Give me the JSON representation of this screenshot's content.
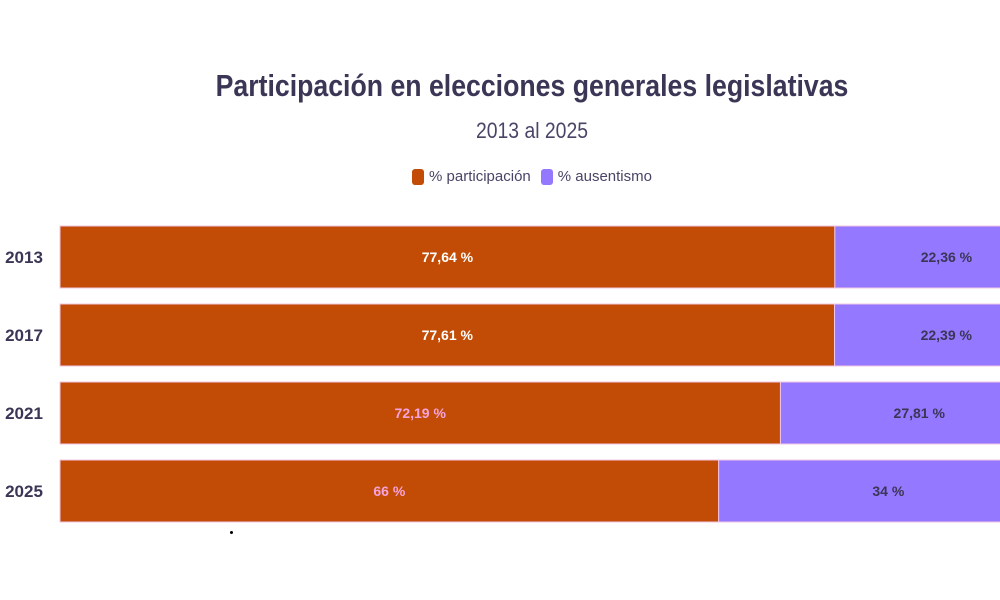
{
  "chart_data": {
    "type": "bar",
    "orientation": "horizontal",
    "stacked": true,
    "title": "Participación en elecciones generales legislativas",
    "subtitle": "2013 al 2025",
    "categories": [
      "2013",
      "2017",
      "2021",
      "2025"
    ],
    "series": [
      {
        "name": "% participación",
        "color": "#c24c05",
        "values": [
          77.64,
          77.61,
          72.19,
          66
        ],
        "labels": [
          "77,64 %",
          "77,61 %",
          "72,19 %",
          "66 %"
        ],
        "label_colors": [
          "#ffffff",
          "#ffffff",
          "#f7a3de",
          "#f7a3de"
        ]
      },
      {
        "name": "% ausentismo",
        "color": "#9478ff",
        "values": [
          22.36,
          22.39,
          27.81,
          34
        ],
        "labels": [
          "22,36 %",
          "22,39 %",
          "27,81 %",
          "34 %"
        ],
        "label_colors": [
          "#3b3556",
          "#3b3556",
          "#3b3556",
          "#3b3556"
        ]
      }
    ],
    "xlim": [
      0,
      100
    ],
    "grid": false,
    "legend": "top-center"
  }
}
